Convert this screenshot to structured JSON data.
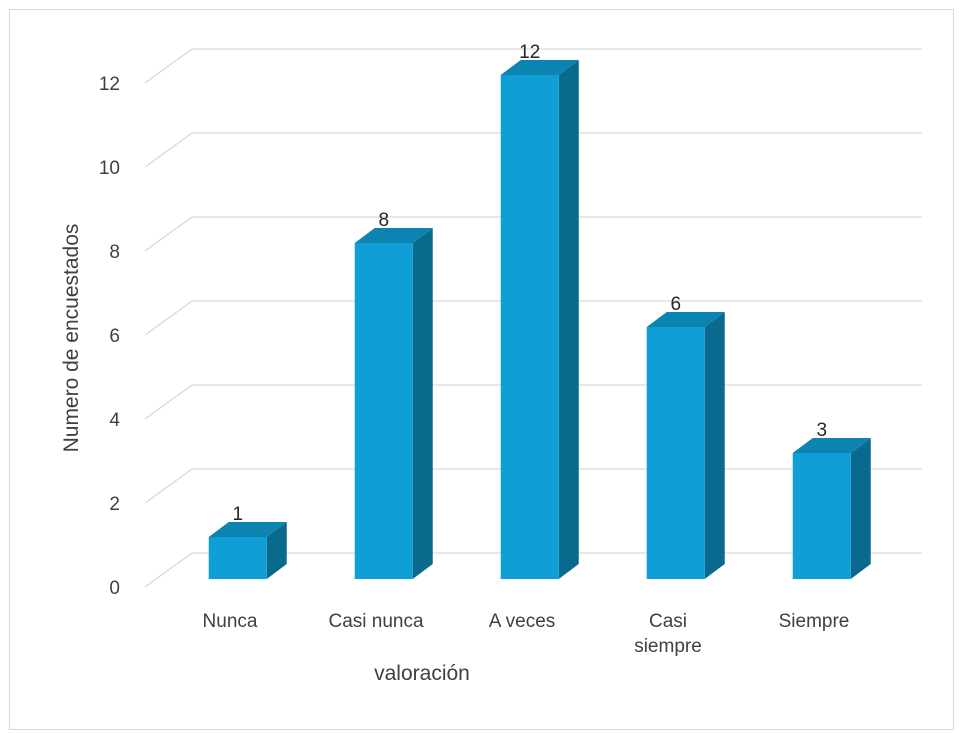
{
  "chart_data": {
    "type": "bar",
    "categories": [
      "Nunca",
      "Casi nunca",
      "A veces",
      "Casi siempre",
      "Siempre"
    ],
    "category_lines": [
      [
        "Nunca"
      ],
      [
        "Casi nunca"
      ],
      [
        "A veces"
      ],
      [
        "Casi",
        "siempre"
      ],
      [
        "Siempre"
      ]
    ],
    "values": [
      1,
      8,
      12,
      6,
      3
    ],
    "title": "",
    "xlabel": "valoración",
    "ylabel": "Numero de encuestados",
    "ylim": [
      0,
      12
    ],
    "yticks": [
      0,
      2,
      4,
      6,
      8,
      10,
      12
    ],
    "grid": true,
    "legend": "none",
    "style": "3d-column",
    "colors": {
      "front": "#0F9ED5",
      "side": "#0A6A8E",
      "top": "#0C84B2",
      "grid": "#d9d9d9",
      "text": "#404040"
    }
  }
}
